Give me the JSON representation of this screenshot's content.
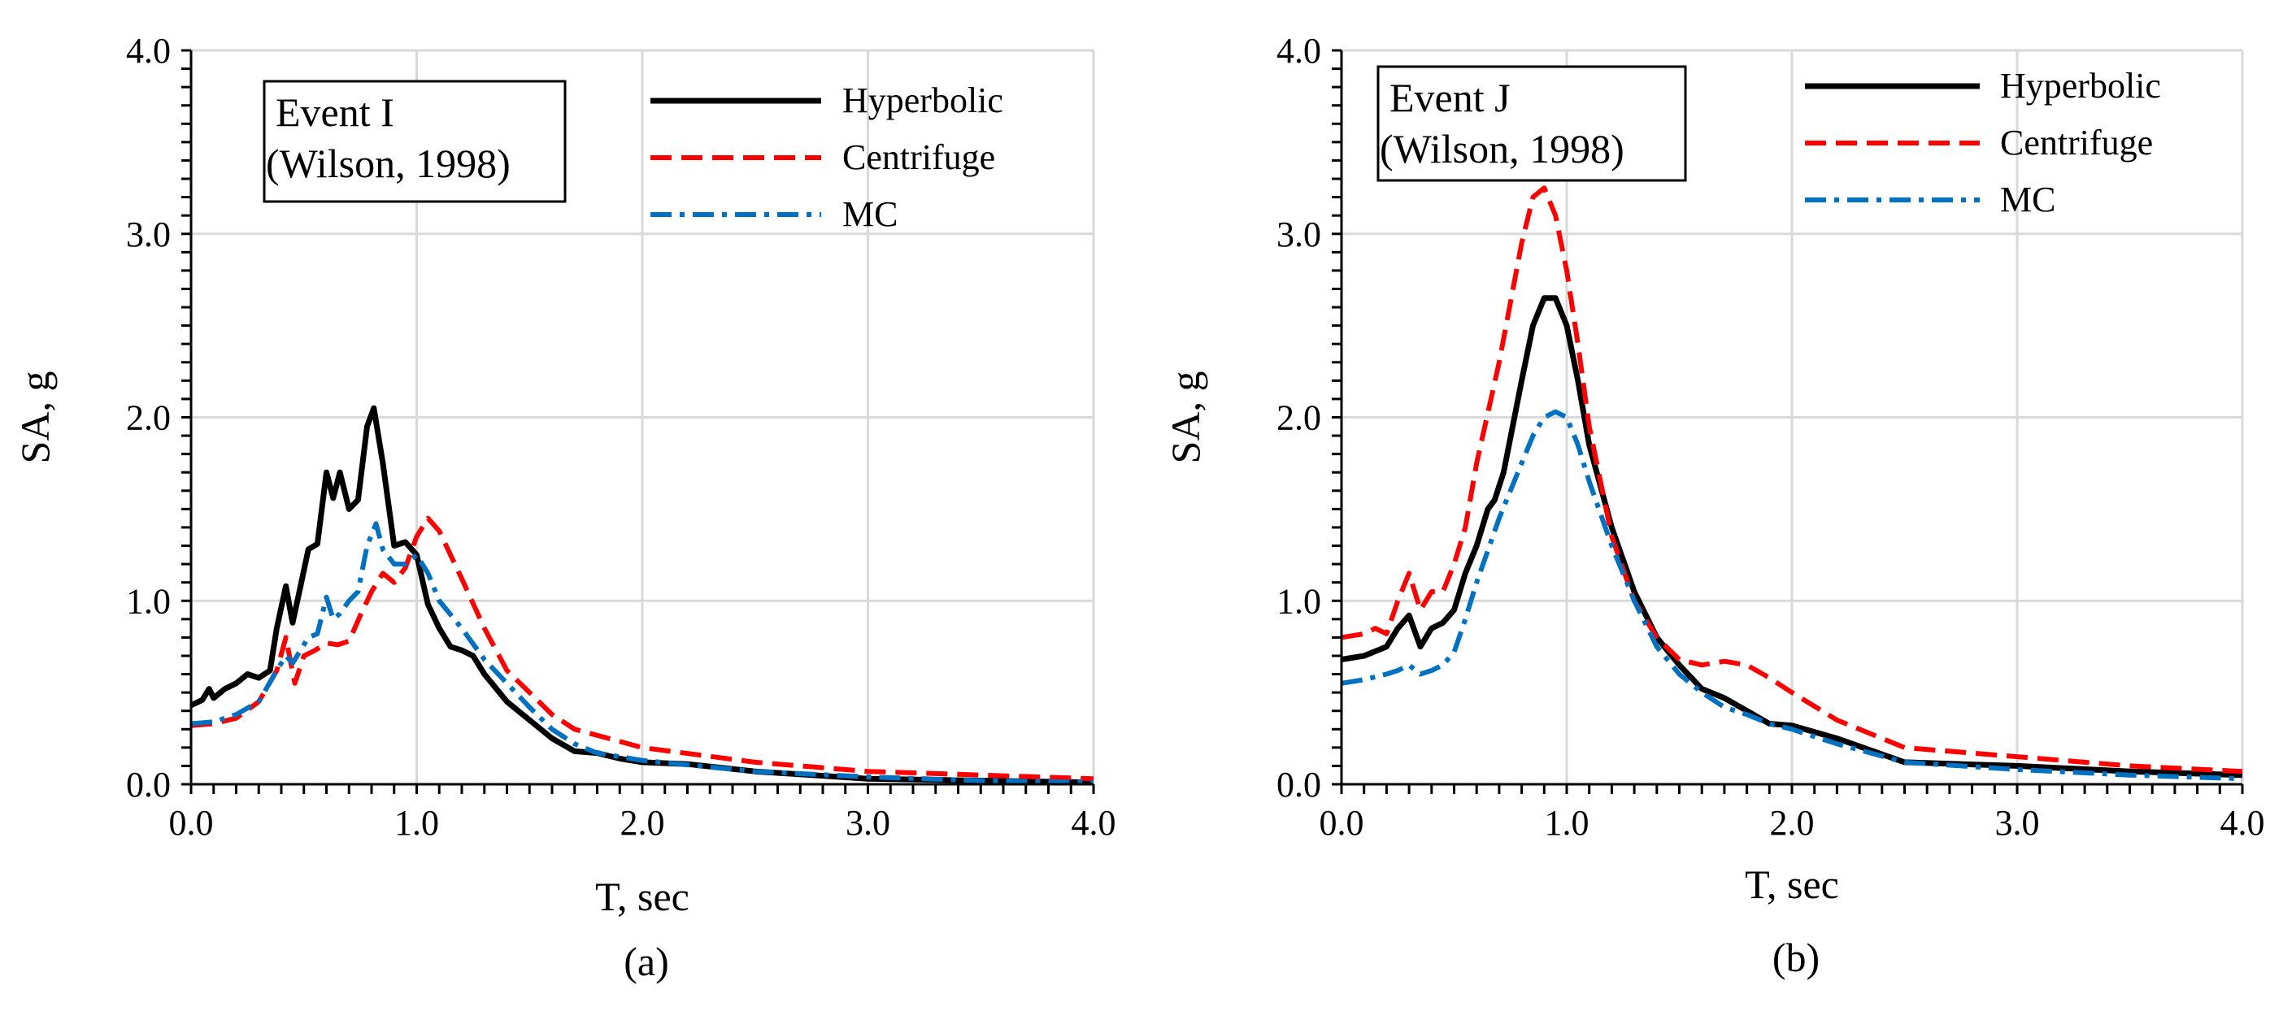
{
  "figure": {
    "colors": {
      "hyperbolic": "#000000",
      "centrifuge": "#ff0000",
      "mc": "#0070c0",
      "grid": "#d9d9d9",
      "axis": "#000000"
    }
  },
  "chart_data": [
    {
      "type": "line",
      "panel_label": "(a)",
      "annotation": [
        "Event I",
        "(Wilson, 1998)"
      ],
      "xlabel": "T, sec",
      "ylabel": "SA, g",
      "xlim": [
        0,
        4
      ],
      "ylim": [
        0,
        4
      ],
      "xticks": [
        "0.0",
        "1.0",
        "2.0",
        "3.0",
        "4.0"
      ],
      "yticks": [
        "0.0",
        "1.0",
        "2.0",
        "3.0",
        "4.0"
      ],
      "grid": true,
      "legend_position": "top-right",
      "series": [
        {
          "name": "Hyperbolic",
          "style": "solid",
          "x": [
            0,
            0.05,
            0.08,
            0.1,
            0.15,
            0.2,
            0.25,
            0.3,
            0.35,
            0.38,
            0.42,
            0.45,
            0.48,
            0.52,
            0.56,
            0.6,
            0.63,
            0.66,
            0.7,
            0.74,
            0.78,
            0.81,
            0.85,
            0.9,
            0.95,
            1.0,
            1.05,
            1.1,
            1.15,
            1.2,
            1.25,
            1.3,
            1.4,
            1.5,
            1.6,
            1.7,
            1.8,
            1.9,
            2.0,
            2.2,
            2.5,
            3.0,
            3.5,
            4.0
          ],
          "y": [
            0.43,
            0.46,
            0.52,
            0.47,
            0.52,
            0.55,
            0.6,
            0.58,
            0.62,
            0.85,
            1.08,
            0.88,
            1.05,
            1.28,
            1.31,
            1.7,
            1.56,
            1.7,
            1.5,
            1.55,
            1.95,
            2.05,
            1.75,
            1.3,
            1.32,
            1.25,
            0.98,
            0.85,
            0.75,
            0.73,
            0.7,
            0.6,
            0.45,
            0.35,
            0.25,
            0.18,
            0.17,
            0.14,
            0.12,
            0.11,
            0.07,
            0.03,
            0.02,
            0.01
          ]
        },
        {
          "name": "Centrifuge",
          "style": "dashed",
          "x": [
            0,
            0.1,
            0.2,
            0.3,
            0.38,
            0.42,
            0.46,
            0.5,
            0.55,
            0.6,
            0.65,
            0.7,
            0.75,
            0.8,
            0.85,
            0.9,
            0.95,
            1.0,
            1.05,
            1.1,
            1.15,
            1.2,
            1.3,
            1.4,
            1.5,
            1.6,
            1.7,
            2.0,
            2.5,
            3.0,
            3.5,
            4.0
          ],
          "y": [
            0.32,
            0.33,
            0.36,
            0.45,
            0.62,
            0.8,
            0.55,
            0.7,
            0.73,
            0.77,
            0.76,
            0.78,
            0.92,
            1.05,
            1.15,
            1.1,
            1.18,
            1.35,
            1.45,
            1.38,
            1.25,
            1.12,
            0.85,
            0.62,
            0.5,
            0.38,
            0.3,
            0.2,
            0.12,
            0.07,
            0.05,
            0.03
          ]
        },
        {
          "name": "MC",
          "style": "dashdot",
          "x": [
            0,
            0.1,
            0.2,
            0.3,
            0.38,
            0.42,
            0.45,
            0.48,
            0.52,
            0.56,
            0.6,
            0.63,
            0.66,
            0.7,
            0.74,
            0.78,
            0.82,
            0.85,
            0.9,
            0.95,
            1.0,
            1.05,
            1.1,
            1.2,
            1.3,
            1.4,
            1.5,
            1.6,
            1.7,
            1.8,
            2.0,
            2.5,
            3.0,
            3.5,
            4.0
          ],
          "y": [
            0.33,
            0.34,
            0.38,
            0.45,
            0.62,
            0.7,
            0.66,
            0.72,
            0.8,
            0.82,
            1.02,
            0.9,
            0.93,
            1.0,
            1.05,
            1.3,
            1.42,
            1.28,
            1.2,
            1.2,
            1.25,
            1.15,
            1.0,
            0.85,
            0.68,
            0.55,
            0.42,
            0.3,
            0.22,
            0.17,
            0.13,
            0.07,
            0.04,
            0.02,
            0.01
          ]
        }
      ]
    },
    {
      "type": "line",
      "panel_label": "(b)",
      "annotation": [
        "Event J",
        "(Wilson, 1998)"
      ],
      "xlabel": "T, sec",
      "ylabel": "SA, g",
      "xlim": [
        0,
        4
      ],
      "ylim": [
        0,
        4
      ],
      "xticks": [
        "0.0",
        "1.0",
        "2.0",
        "3.0",
        "4.0"
      ],
      "yticks": [
        "0.0",
        "1.0",
        "2.0",
        "3.0",
        "4.0"
      ],
      "grid": true,
      "legend_position": "top-right",
      "series": [
        {
          "name": "Hyperbolic",
          "style": "solid",
          "x": [
            0,
            0.1,
            0.2,
            0.25,
            0.3,
            0.35,
            0.4,
            0.45,
            0.5,
            0.55,
            0.6,
            0.65,
            0.68,
            0.72,
            0.8,
            0.85,
            0.9,
            0.95,
            1.0,
            1.05,
            1.1,
            1.2,
            1.3,
            1.4,
            1.5,
            1.6,
            1.7,
            1.8,
            1.9,
            2.0,
            2.2,
            2.5,
            3.0,
            3.5,
            4.0
          ],
          "y": [
            0.68,
            0.7,
            0.75,
            0.85,
            0.92,
            0.75,
            0.85,
            0.88,
            0.95,
            1.15,
            1.3,
            1.5,
            1.55,
            1.7,
            2.2,
            2.5,
            2.65,
            2.65,
            2.5,
            2.2,
            1.85,
            1.4,
            1.05,
            0.8,
            0.65,
            0.52,
            0.47,
            0.4,
            0.33,
            0.32,
            0.25,
            0.12,
            0.1,
            0.07,
            0.05
          ]
        },
        {
          "name": "Centrifuge",
          "style": "dashed",
          "x": [
            0,
            0.1,
            0.15,
            0.2,
            0.25,
            0.3,
            0.35,
            0.4,
            0.45,
            0.5,
            0.55,
            0.6,
            0.7,
            0.8,
            0.85,
            0.9,
            0.95,
            1.0,
            1.05,
            1.1,
            1.2,
            1.3,
            1.4,
            1.5,
            1.6,
            1.7,
            1.8,
            1.9,
            2.0,
            2.2,
            2.5,
            3.0,
            3.5,
            4.0
          ],
          "y": [
            0.8,
            0.82,
            0.85,
            0.82,
            1.0,
            1.15,
            0.95,
            1.05,
            1.05,
            1.2,
            1.4,
            1.75,
            2.3,
            2.95,
            3.2,
            3.25,
            3.1,
            2.8,
            2.4,
            1.95,
            1.35,
            1.0,
            0.8,
            0.68,
            0.65,
            0.67,
            0.65,
            0.58,
            0.5,
            0.35,
            0.2,
            0.15,
            0.1,
            0.07
          ]
        },
        {
          "name": "MC",
          "style": "dashdot",
          "x": [
            0,
            0.1,
            0.2,
            0.25,
            0.3,
            0.35,
            0.4,
            0.45,
            0.5,
            0.55,
            0.6,
            0.7,
            0.8,
            0.85,
            0.9,
            0.95,
            1.0,
            1.05,
            1.1,
            1.2,
            1.3,
            1.4,
            1.5,
            1.6,
            1.7,
            1.8,
            1.9,
            2.0,
            2.2,
            2.5,
            3.0,
            3.5,
            4.0
          ],
          "y": [
            0.55,
            0.57,
            0.6,
            0.62,
            0.65,
            0.6,
            0.62,
            0.65,
            0.72,
            0.9,
            1.1,
            1.45,
            1.75,
            1.9,
            2.0,
            2.03,
            2.0,
            1.85,
            1.65,
            1.3,
            1.0,
            0.75,
            0.6,
            0.5,
            0.42,
            0.38,
            0.33,
            0.3,
            0.22,
            0.12,
            0.08,
            0.05,
            0.03
          ]
        }
      ]
    }
  ]
}
